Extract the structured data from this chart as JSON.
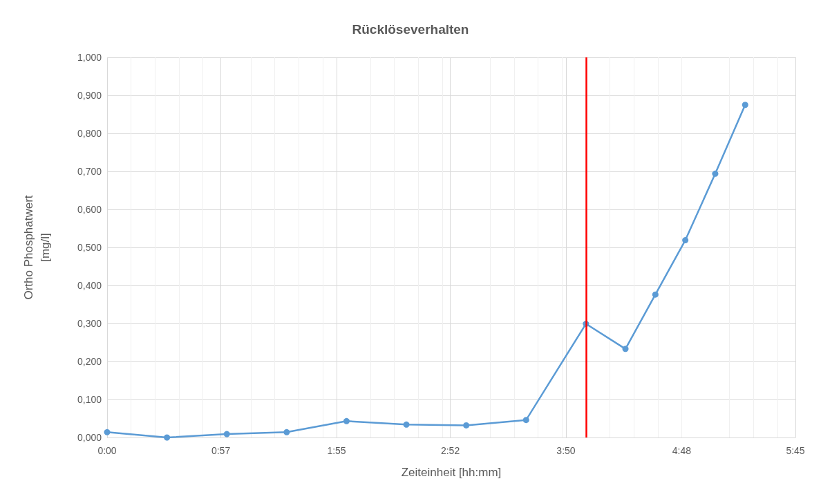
{
  "chart_data": {
    "type": "line",
    "title": "Rücklöseverhalten",
    "xlabel": "Zeiteinheit [hh:mm]",
    "ylabel": "Ortho Phosphatwert\n[mg/l]",
    "x": [
      0,
      0.5,
      1.0,
      1.5,
      2.0,
      2.5,
      3.0,
      3.5,
      4.0,
      4.33,
      4.58,
      4.83,
      5.08,
      5.33
    ],
    "series": [
      {
        "color": "#5b9bd5",
        "values": [
          0.014,
          0.0,
          0.009,
          0.014,
          0.043,
          0.034,
          0.032,
          0.046,
          0.299,
          0.233,
          0.376,
          0.519,
          0.694,
          0.875
        ]
      }
    ],
    "xlim": [
      0,
      5.75
    ],
    "xticks": [
      {
        "value": 0,
        "label": "0:00"
      },
      {
        "value": 0.95,
        "label": "0:57"
      },
      {
        "value": 1.9167,
        "label": "1:55"
      },
      {
        "value": 2.8667,
        "label": "2:52"
      },
      {
        "value": 3.8333,
        "label": "3:50"
      },
      {
        "value": 4.8,
        "label": "4:48"
      },
      {
        "value": 5.75,
        "label": "5:45"
      }
    ],
    "ylim": [
      0,
      1
    ],
    "yticks": [
      {
        "value": 0,
        "label": "0,000"
      },
      {
        "value": 0.1,
        "label": "0,100"
      },
      {
        "value": 0.2,
        "label": "0,200"
      },
      {
        "value": 0.3,
        "label": "0,300"
      },
      {
        "value": 0.4,
        "label": "0,400"
      },
      {
        "value": 0.5,
        "label": "0,500"
      },
      {
        "value": 0.6,
        "label": "0,600"
      },
      {
        "value": 0.7,
        "label": "0,700"
      },
      {
        "value": 0.8,
        "label": "0,800"
      },
      {
        "value": 0.9,
        "label": "0,900"
      },
      {
        "value": 1,
        "label": "1,000"
      }
    ],
    "ref_lines": [
      {
        "axis": "x",
        "value": 4.0,
        "color": "#ff0000"
      }
    ],
    "grid": true,
    "marker": "circle",
    "line_style": "solid"
  }
}
